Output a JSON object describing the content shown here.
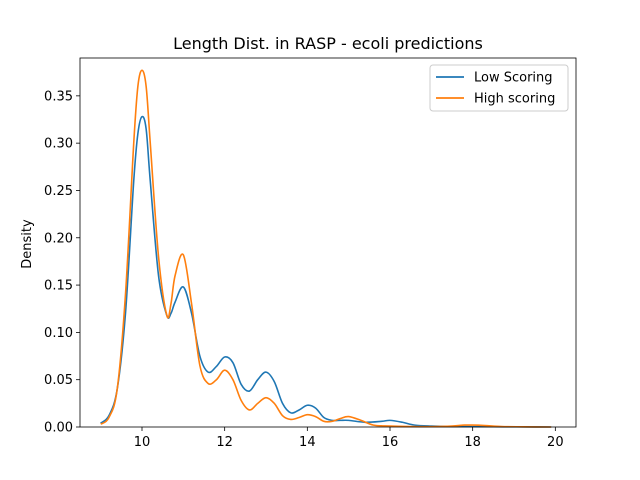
{
  "chart_data": {
    "type": "line",
    "title": "Length Dist. in RASP - ecoli predictions",
    "xlabel": "",
    "ylabel": "Density",
    "xlim": [
      8.5,
      20.5
    ],
    "ylim": [
      0.0,
      0.39
    ],
    "xticks": [
      "10",
      "12",
      "14",
      "16",
      "18",
      "20"
    ],
    "yticks": [
      "0.00",
      "0.05",
      "0.10",
      "0.15",
      "0.20",
      "0.25",
      "0.30",
      "0.35"
    ],
    "xtick_values": [
      10,
      12,
      14,
      16,
      18,
      20
    ],
    "ytick_values": [
      0.0,
      0.05,
      0.1,
      0.15,
      0.2,
      0.25,
      0.3,
      0.35
    ],
    "grid": false,
    "legend_position": "top-right",
    "series": [
      {
        "name": "Low Scoring",
        "color": "#1f77b4",
        "x": [
          9.0,
          9.2,
          9.4,
          9.6,
          9.8,
          9.9,
          10.0,
          10.1,
          10.2,
          10.4,
          10.6,
          10.7,
          10.8,
          11.0,
          11.2,
          11.4,
          11.6,
          11.8,
          12.0,
          12.2,
          12.4,
          12.6,
          12.8,
          13.0,
          13.2,
          13.4,
          13.6,
          13.8,
          14.0,
          14.2,
          14.4,
          14.6,
          14.8,
          15.0,
          15.4,
          15.8,
          16.0,
          16.3,
          16.6,
          17.0,
          17.5,
          18.0,
          18.5,
          19.0,
          19.5,
          19.9
        ],
        "y": [
          0.004,
          0.012,
          0.04,
          0.12,
          0.26,
          0.31,
          0.328,
          0.315,
          0.26,
          0.16,
          0.118,
          0.12,
          0.132,
          0.148,
          0.12,
          0.075,
          0.058,
          0.064,
          0.074,
          0.068,
          0.045,
          0.038,
          0.05,
          0.058,
          0.048,
          0.025,
          0.015,
          0.018,
          0.023,
          0.02,
          0.01,
          0.007,
          0.007,
          0.007,
          0.005,
          0.006,
          0.007,
          0.005,
          0.002,
          0.001,
          0.0005,
          0.0004,
          0.0003,
          0.0002,
          0.0001,
          0.0
        ]
      },
      {
        "name": "High scoring",
        "color": "#ff7f0e",
        "x": [
          9.0,
          9.2,
          9.4,
          9.6,
          9.8,
          9.9,
          10.0,
          10.1,
          10.2,
          10.4,
          10.6,
          10.7,
          10.8,
          11.0,
          11.2,
          11.4,
          11.6,
          11.8,
          12.0,
          12.2,
          12.4,
          12.6,
          12.8,
          13.0,
          13.2,
          13.4,
          13.6,
          13.8,
          14.0,
          14.2,
          14.4,
          14.6,
          14.8,
          15.0,
          15.3,
          15.6,
          16.0,
          16.5,
          17.0,
          17.5,
          17.8,
          18.0,
          18.3,
          18.7,
          19.2,
          19.9
        ],
        "y": [
          0.003,
          0.01,
          0.04,
          0.14,
          0.3,
          0.36,
          0.377,
          0.36,
          0.3,
          0.18,
          0.118,
          0.13,
          0.16,
          0.182,
          0.13,
          0.065,
          0.046,
          0.05,
          0.06,
          0.05,
          0.028,
          0.018,
          0.025,
          0.031,
          0.025,
          0.012,
          0.008,
          0.01,
          0.013,
          0.011,
          0.006,
          0.006,
          0.009,
          0.011,
          0.007,
          0.002,
          0.001,
          0.0005,
          0.0004,
          0.001,
          0.002,
          0.002,
          0.0015,
          0.0005,
          0.0002,
          0.0
        ]
      }
    ]
  }
}
